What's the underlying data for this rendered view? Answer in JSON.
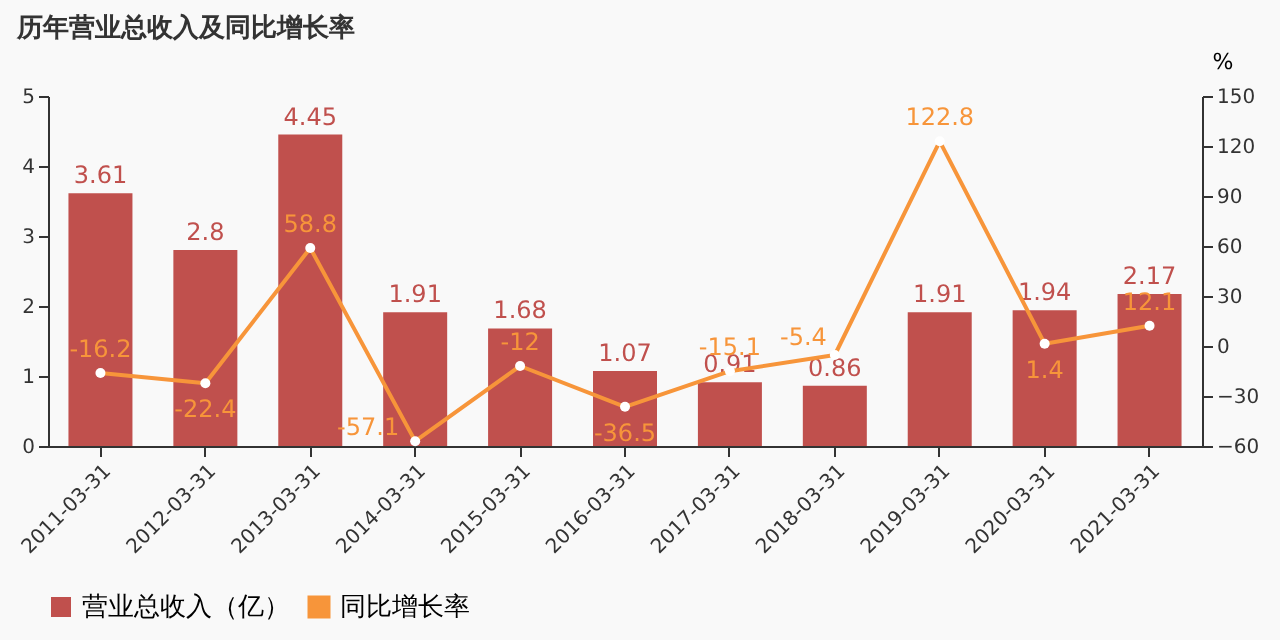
{
  "chart_data": {
    "type": "bar",
    "title": "历年营业总收入及同比增长率",
    "categories": [
      "2011-03-31",
      "2012-03-31",
      "2013-03-31",
      "2014-03-31",
      "2015-03-31",
      "2016-03-31",
      "2017-03-31",
      "2018-03-31",
      "2019-03-31",
      "2020-03-31",
      "2021-03-31"
    ],
    "series": [
      {
        "name": "营业总收入（亿）",
        "color": "#c0504d",
        "values": [
          3.61,
          2.8,
          4.45,
          1.91,
          1.68,
          1.07,
          0.91,
          0.86,
          1.91,
          1.94,
          2.17
        ]
      },
      {
        "name": "同比增长率",
        "type": "line",
        "axis": "y2",
        "color": "#f7953a",
        "marker": "circle",
        "values": [
          -16.2,
          -22.4,
          58.8,
          -57.1,
          -12,
          -36.5,
          -15.1,
          -5.4,
          122.8,
          1.4,
          12.1
        ]
      }
    ],
    "y2label": "%",
    "ylim": [
      0,
      5
    ],
    "yticks": [
      0,
      1,
      2,
      3,
      4,
      5
    ],
    "y2lim": [
      -60,
      150
    ],
    "y2ticks": [
      -60,
      -30,
      0,
      30,
      60,
      90,
      120,
      150
    ],
    "data_labels": true,
    "grid": false,
    "legend": "bottom"
  }
}
